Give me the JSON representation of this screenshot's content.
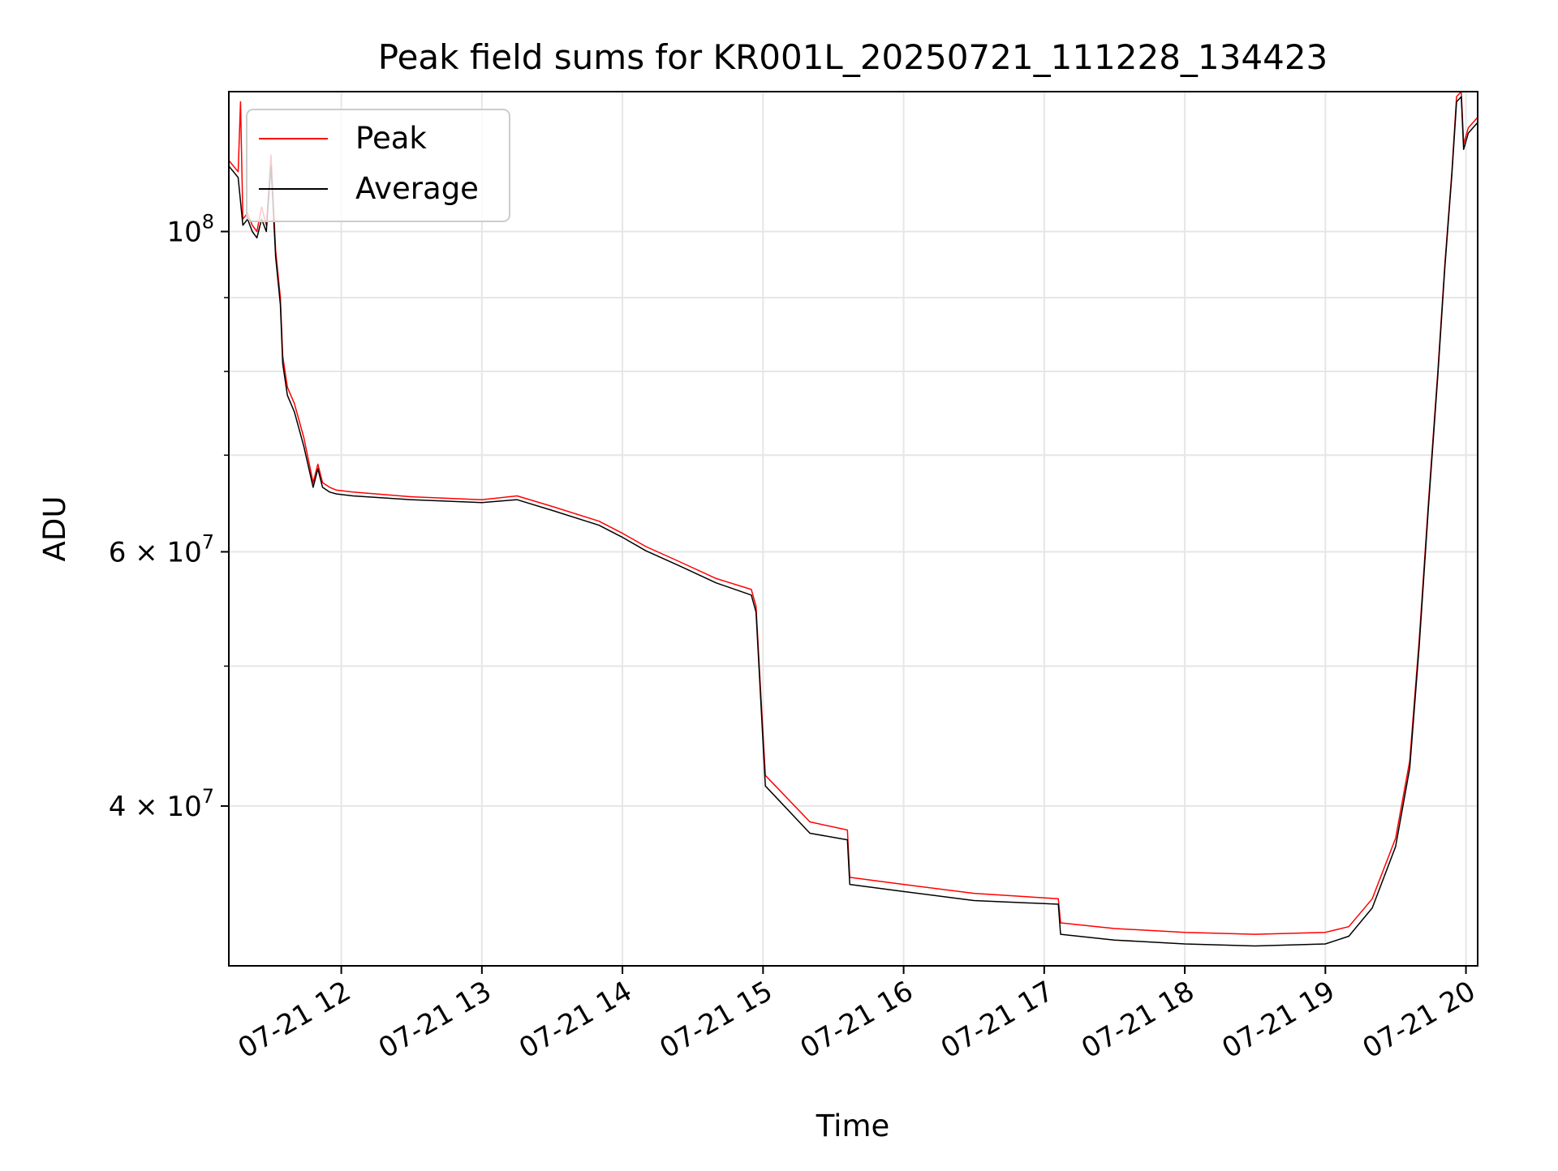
{
  "chart_data": {
    "type": "line",
    "title": "Peak field sums for KR001L_20250721_111228_134423",
    "xlabel": "Time",
    "ylabel": "ADU",
    "yscale": "log",
    "grid": true,
    "legend_position": "top-left",
    "xlim": [
      "2025-07-21 11:12",
      "2025-07-21 20:05"
    ],
    "ylim": [
      31000000,
      125000000
    ],
    "x_ticks": [
      {
        "x": "2025-07-21 12:00",
        "label": "07-21 12"
      },
      {
        "x": "2025-07-21 13:00",
        "label": "07-21 13"
      },
      {
        "x": "2025-07-21 14:00",
        "label": "07-21 14"
      },
      {
        "x": "2025-07-21 15:00",
        "label": "07-21 15"
      },
      {
        "x": "2025-07-21 16:00",
        "label": "07-21 16"
      },
      {
        "x": "2025-07-21 17:00",
        "label": "07-21 17"
      },
      {
        "x": "2025-07-21 18:00",
        "label": "07-21 18"
      },
      {
        "x": "2025-07-21 19:00",
        "label": "07-21 19"
      },
      {
        "x": "2025-07-21 20:00",
        "label": "07-21 20"
      }
    ],
    "y_major_ticks": [
      {
        "value": 100000000,
        "base": "10",
        "exp": "8"
      },
      {
        "value": 60000000,
        "base": "6 × 10",
        "exp": "7"
      },
      {
        "value": 40000000,
        "base": "4 × 10",
        "exp": "7"
      }
    ],
    "y_minor_ticks": [
      50000000,
      70000000,
      80000000,
      90000000
    ],
    "series": [
      {
        "name": "Peak",
        "color": "#ff0000",
        "x": [
          "2025-07-21 11:12",
          "2025-07-21 11:16",
          "2025-07-21 11:17",
          "2025-07-21 11:18",
          "2025-07-21 11:20",
          "2025-07-21 11:22",
          "2025-07-21 11:24",
          "2025-07-21 11:26",
          "2025-07-21 11:28",
          "2025-07-21 11:30",
          "2025-07-21 11:32",
          "2025-07-21 11:34",
          "2025-07-21 11:35",
          "2025-07-21 11:37",
          "2025-07-21 11:40",
          "2025-07-21 11:44",
          "2025-07-21 11:48",
          "2025-07-21 11:50",
          "2025-07-21 11:52",
          "2025-07-21 11:55",
          "2025-07-21 11:58",
          "2025-07-21 12:05",
          "2025-07-21 12:30",
          "2025-07-21 13:00",
          "2025-07-21 13:15",
          "2025-07-21 13:30",
          "2025-07-21 13:50",
          "2025-07-21 14:00",
          "2025-07-21 14:10",
          "2025-07-21 14:25",
          "2025-07-21 14:40",
          "2025-07-21 14:55",
          "2025-07-21 14:57",
          "2025-07-21 14:59",
          "2025-07-21 15:01",
          "2025-07-21 15:20",
          "2025-07-21 15:36",
          "2025-07-21 15:37",
          "2025-07-21 16:00",
          "2025-07-21 16:30",
          "2025-07-21 17:06",
          "2025-07-21 17:07",
          "2025-07-21 17:30",
          "2025-07-21 18:00",
          "2025-07-21 18:30",
          "2025-07-21 19:00",
          "2025-07-21 19:10",
          "2025-07-21 19:20",
          "2025-07-21 19:30",
          "2025-07-21 19:36",
          "2025-07-21 19:40",
          "2025-07-21 19:44",
          "2025-07-21 19:48",
          "2025-07-21 19:51",
          "2025-07-21 19:54",
          "2025-07-21 19:56",
          "2025-07-21 19:58",
          "2025-07-21 19:59",
          "2025-07-21 20:01",
          "2025-07-21 20:05"
        ],
        "y": [
          112000000,
          110000000,
          123000000,
          102000000,
          103000000,
          101000000,
          100000000,
          104000000,
          101000000,
          113000000,
          97000000,
          90000000,
          82000000,
          78000000,
          76000000,
          72000000,
          67000000,
          69000000,
          67000000,
          66500000,
          66200000,
          66000000,
          65500000,
          65200000,
          65600000,
          64500000,
          63000000,
          61800000,
          60500000,
          59000000,
          57500000,
          56500000,
          55000000,
          48000000,
          42000000,
          39000000,
          38500000,
          35700000,
          35300000,
          34800000,
          34500000,
          33200000,
          32900000,
          32700000,
          32600000,
          32700000,
          33000000,
          34500000,
          38000000,
          43000000,
          52000000,
          65000000,
          80000000,
          95000000,
          110000000,
          124000000,
          125000000,
          115000000,
          118000000,
          120000000
        ]
      },
      {
        "name": "Average",
        "color": "#000000",
        "x": [
          "2025-07-21 11:12",
          "2025-07-21 11:16",
          "2025-07-21 11:18",
          "2025-07-21 11:20",
          "2025-07-21 11:22",
          "2025-07-21 11:24",
          "2025-07-21 11:26",
          "2025-07-21 11:28",
          "2025-07-21 11:30",
          "2025-07-21 11:32",
          "2025-07-21 11:34",
          "2025-07-21 11:35",
          "2025-07-21 11:37",
          "2025-07-21 11:40",
          "2025-07-21 11:44",
          "2025-07-21 11:48",
          "2025-07-21 11:50",
          "2025-07-21 11:52",
          "2025-07-21 11:55",
          "2025-07-21 11:58",
          "2025-07-21 12:05",
          "2025-07-21 12:30",
          "2025-07-21 13:00",
          "2025-07-21 13:15",
          "2025-07-21 13:30",
          "2025-07-21 13:50",
          "2025-07-21 14:00",
          "2025-07-21 14:10",
          "2025-07-21 14:25",
          "2025-07-21 14:40",
          "2025-07-21 14:55",
          "2025-07-21 14:57",
          "2025-07-21 14:59",
          "2025-07-21 15:01",
          "2025-07-21 15:20",
          "2025-07-21 15:36",
          "2025-07-21 15:37",
          "2025-07-21 16:00",
          "2025-07-21 16:30",
          "2025-07-21 17:06",
          "2025-07-21 17:07",
          "2025-07-21 17:30",
          "2025-07-21 18:00",
          "2025-07-21 18:30",
          "2025-07-21 19:00",
          "2025-07-21 19:10",
          "2025-07-21 19:20",
          "2025-07-21 19:30",
          "2025-07-21 19:36",
          "2025-07-21 19:40",
          "2025-07-21 19:44",
          "2025-07-21 19:48",
          "2025-07-21 19:51",
          "2025-07-21 19:54",
          "2025-07-21 19:56",
          "2025-07-21 19:58",
          "2025-07-21 19:59",
          "2025-07-21 20:01",
          "2025-07-21 20:05"
        ],
        "y": [
          111000000,
          109000000,
          101000000,
          102000000,
          100000000,
          99000000,
          102000000,
          100000000,
          111000000,
          96000000,
          89000000,
          81000000,
          77000000,
          75000000,
          71000000,
          66500000,
          68500000,
          66500000,
          66000000,
          65800000,
          65600000,
          65200000,
          64900000,
          65200000,
          64100000,
          62600000,
          61400000,
          60100000,
          58600000,
          57100000,
          56000000,
          54500000,
          47500000,
          41300000,
          38300000,
          37900000,
          35300000,
          34900000,
          34400000,
          34200000,
          32600000,
          32300000,
          32100000,
          32000000,
          32100000,
          32500000,
          34000000,
          37500000,
          42500000,
          51500000,
          64500000,
          79500000,
          94500000,
          109500000,
          123000000,
          124000000,
          114000000,
          117000000,
          119000000
        ]
      }
    ]
  }
}
